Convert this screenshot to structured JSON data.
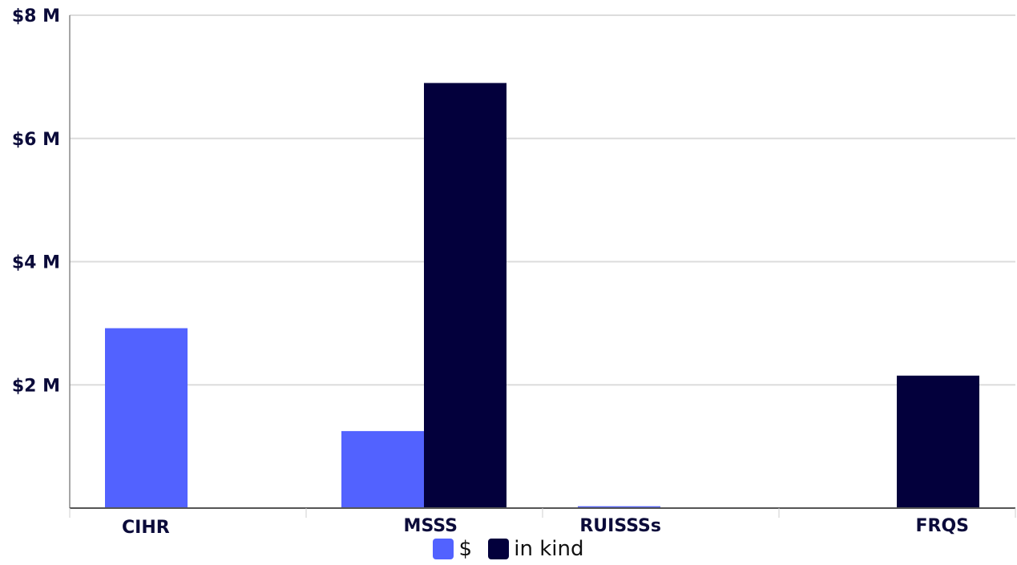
{
  "chart_data": {
    "type": "bar",
    "title": "",
    "xlabel": "",
    "ylabel": "",
    "categories": [
      "CIHR",
      "MSSS",
      "RUISSSs",
      "FRQS"
    ],
    "series": [
      {
        "name": "$",
        "color": "#5262ff",
        "values": [
          2.92,
          1.25,
          0.03,
          0
        ]
      },
      {
        "name": "in kind",
        "color": "#03003c",
        "values": [
          0,
          6.9,
          0,
          2.15
        ]
      }
    ],
    "ylim": [
      0,
      8
    ],
    "yticks": [
      {
        "value": 2,
        "label": "$2 M"
      },
      {
        "value": 4,
        "label": "$4 M"
      },
      {
        "value": 6,
        "label": "$6 M"
      },
      {
        "value": 8,
        "label": "$8 M"
      }
    ],
    "grid": true,
    "legend_position": "bottom-center"
  }
}
